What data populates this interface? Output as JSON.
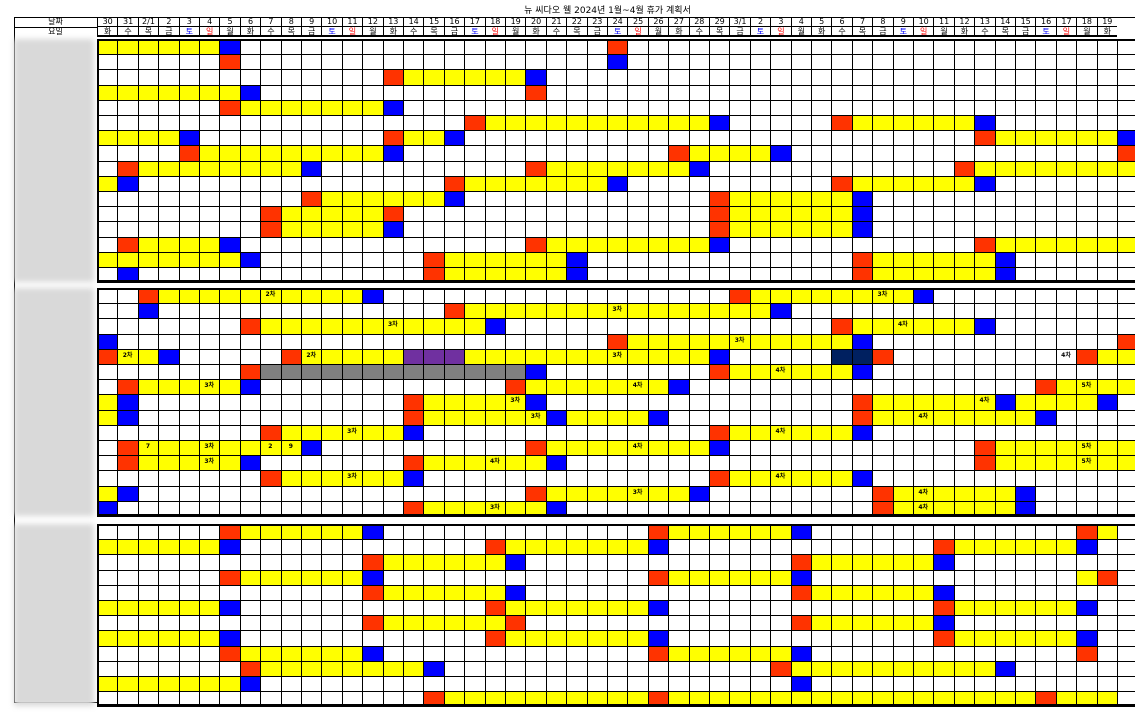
{
  "title": "뉴 씨다오 웰 2024년 1월~4월 휴가 계획서",
  "row_labels": {
    "date": "날짜",
    "weekday": "요일"
  },
  "dates": [
    "30",
    "31",
    "2/1",
    "2",
    "3",
    "4",
    "5",
    "6",
    "7",
    "8",
    "9",
    "10",
    "11",
    "12",
    "13",
    "14",
    "15",
    "16",
    "17",
    "18",
    "19",
    "20",
    "21",
    "22",
    "23",
    "24",
    "25",
    "26",
    "27",
    "28",
    "29",
    "3/1",
    "2",
    "3",
    "4",
    "5",
    "6",
    "7",
    "8",
    "9",
    "10",
    "11",
    "12",
    "13",
    "14",
    "15",
    "16",
    "17",
    "18",
    "19"
  ],
  "weekdays": [
    "화",
    "수",
    "목",
    "금",
    "토",
    "일",
    "월",
    "화",
    "수",
    "목",
    "금",
    "토",
    "일",
    "월",
    "화",
    "수",
    "목",
    "금",
    "토",
    "일",
    "월",
    "화",
    "수",
    "목",
    "금",
    "토",
    "일",
    "월",
    "화",
    "수",
    "목",
    "금",
    "토",
    "일",
    "월",
    "화",
    "수",
    "목",
    "금",
    "토",
    "일",
    "월",
    "화",
    "수",
    "목",
    "금",
    "토",
    "일",
    "월",
    "화"
  ],
  "colors": {
    "yellow": "#ffff00",
    "blue": "#0000ff",
    "red": "#ff3300",
    "purple": "#7030a0",
    "gray": "#808080",
    "navy": "#002060",
    "sat": "#0000ff",
    "sun": "#ff0000"
  },
  "sections": [
    {
      "rows": [
        "YYYYYYBWWWWWWWWWWWWWWWWWWRWWWWWWWWWWWWWWWWWWWWWWWWW",
        "WWWWWWRWWWWWWWWWWWWWWWWWWBWWWWWWWWWWWWWWWWWWWWWWWWW",
        "WWWWWWWWWWWWWWRYYYYYYBWWWWWWWWWWWWWWWWWWWWWWWWWWWWW",
        "YYYYYYYBWWWWWWWWWWWWWRWWWWWWWWWWWWWWWWWWWWWWWWWWWWW",
        "WWWWWWRYYYYYYYBWWWWWWWWWWWWWWWWWWWWWWWWWWWWWWWWWWWW",
        "WWWWWWWWWWWWWWWWWWRYYYYYYYYYYYBWWWWWRYYYYYYBWWWWWWW",
        "YYYYBWWWWWWWWWRYYBWWWWWWWWWWWWWWWWWWWWWWWWWRYYYYYYB",
        "WWWWRYYYYYYYYYBWWWWWWWWWWWWWRYYYYBWWWWWWWWWWWWWWWWR",
        "WRYYYYYYYYBWWWWWWWWWWRYYYYYYYBWWWWWWWWWWWWRYYYYYYYY",
        "YBWWWWWWWWWWWWWWWRYYYYYYYBWWWWWWWWWWRYYYYYYBWWWWWWW",
        "WWWWWWWWWWRYYYYYYBWWWWWWWWWWWWRYYYYYYBWWWWWWWWWWWWW",
        "WWWWWWWWRYYYYYRWWWWWWWWWWWWWWWRYYYYYYBWWWWWWWWWWWWW",
        "WWWWWWWWRYYYYYBWWWWWWWWWWWWWWWRYYYYYYBWWWWWWWWWWWWW",
        "WRYYYYBWWWWWWWWWWWWWWRYYYYYYYYBWWWWWWWWWWWWRYYYYYYY",
        "YYYYYYYBWWWWWWWWRYYYYYYBWWWWWWWWWWWWWRYYYYYYBWWWWWW",
        "WBWWWWWWWWWWWWWWRYYYYYYBWWWWWWWWWWWWWRYYYYYYBWWWWWW"
      ]
    },
    {
      "rows": [
        "WWRYYYYYYYYYYBWWWWWWWWWWWWWWWWWRYYYYYYYYBWWWWWWWWWW",
        "WWBWWWWWWWWWWWWWWRYYYYYYYYYYYYYYYBWWWWWWWWWWWWWWWWW",
        "WWWWWWWRYYYYYYYYYYYBWWWWWWWWWWWWWWWWRYYYYYYBWWWWWWW",
        "BWWWWWWWWWWWWWWWWWWWWWWWWRYYYYYYYYYYYBWWWWWWWWWWWWR",
        "RYYBWWWWWRYYYYYPPPYYYYYYYYYYYYBWWWWWNNRWWWWWWWWWRYYY",
        "WWWWWWWRGGGGGGGGGGGGGBWWWWWWWWRYYYYYYBWWWWWWWWWWWWW",
        "WRYYYYYBWWWWWWWWWWWWRYYYYYYYBWWWWWWWWWWWWWWWWWRYYYY",
        "YBWWWWWWWWWWWWWRYYYYYBWWWWWWWWWWWWWWWRYYYYYYBYYYYBW",
        "YBWWWWWWWWWWWWWRYYYYYYBYYYYBWWWWWWWWWRYYYYYYYYBWWWW",
        "WWWWWWWWRYYYYYYBWWWWWWWWWWWWWWRYYYYYYBWWWWWWWWWWWWW",
        "WRYYYYYYYYBWWWWWWWWWWRYYYYYYYYBWWWWWWWWWWWWRYYYYYYY",
        "WRYYYYYBWWWWWWWRYYYYYYBWWWWWWWWWWWWWWWWWWWWRYYYYYYY",
        "WWWWWWWWRYYYYYYBWWWWWWWWWWWWWWRYYYYYYBWWWWWWWWWWWWW",
        "YBWWWWWWWWWWWWWWWWWWWRYYYYYYYBWWWWWWWWRYYYYYYBWWWWW",
        "BWWWWWWWWWWWWWWRYYYYYYBWWWWWWWWWWWWWWWRYYYYYYBWWWWW"
      ],
      "labels": [
        {
          "r": 0,
          "c": 8,
          "t": "2차"
        },
        {
          "r": 0,
          "c": 38,
          "t": "3차"
        },
        {
          "r": 1,
          "c": 25,
          "t": "3차"
        },
        {
          "r": 2,
          "c": 14,
          "t": "3차"
        },
        {
          "r": 2,
          "c": 39,
          "t": "4차"
        },
        {
          "r": 3,
          "c": 31,
          "t": "3차"
        },
        {
          "r": 4,
          "c": 1,
          "t": "2차"
        },
        {
          "r": 4,
          "c": 10,
          "t": "2차"
        },
        {
          "r": 4,
          "c": 25,
          "t": "3차"
        },
        {
          "r": 4,
          "c": 47,
          "t": "4차"
        },
        {
          "r": 5,
          "c": 33,
          "t": "4차"
        },
        {
          "r": 6,
          "c": 5,
          "t": "3차"
        },
        {
          "r": 6,
          "c": 26,
          "t": "4차"
        },
        {
          "r": 6,
          "c": 48,
          "t": "5차"
        },
        {
          "r": 7,
          "c": 20,
          "t": "3차"
        },
        {
          "r": 7,
          "c": 43,
          "t": "4차"
        },
        {
          "r": 8,
          "c": 21,
          "t": "3차"
        },
        {
          "r": 8,
          "c": 40,
          "t": "4차"
        },
        {
          "r": 9,
          "c": 12,
          "t": "3차"
        },
        {
          "r": 9,
          "c": 33,
          "t": "4차"
        },
        {
          "r": 10,
          "c": 2,
          "t": "7"
        },
        {
          "r": 10,
          "c": 5,
          "t": "3차"
        },
        {
          "r": 10,
          "c": 8,
          "t": "2"
        },
        {
          "r": 10,
          "c": 9,
          "t": "9"
        },
        {
          "r": 10,
          "c": 26,
          "t": "4차"
        },
        {
          "r": 10,
          "c": 48,
          "t": "5차"
        },
        {
          "r": 11,
          "c": 5,
          "t": "3차"
        },
        {
          "r": 11,
          "c": 19,
          "t": "4차"
        },
        {
          "r": 11,
          "c": 48,
          "t": "5차"
        },
        {
          "r": 12,
          "c": 12,
          "t": "3차"
        },
        {
          "r": 12,
          "c": 33,
          "t": "4차"
        },
        {
          "r": 13,
          "c": 26,
          "t": "3차"
        },
        {
          "r": 13,
          "c": 40,
          "t": "4차"
        },
        {
          "r": 14,
          "c": 19,
          "t": "3차"
        },
        {
          "r": 14,
          "c": 40,
          "t": "4차"
        }
      ]
    },
    {
      "rows": [
        "WWWWWWRYYYYYYBWWWWWWWWWWWWWRYYYYYYBWWWWWWWWWWWWWRY",
        "YYYYYYBWWWWWWWWWWWWRYYYYYYYBWWWWWWWWWWWWWRYYYYYYBW",
        "WWWWWWWWWWWWWRYYYYYYBWWWWWWWWWWWWWRYYYYYYBWWWWWWWW",
        "WWWWWWRYYYYYYBWWWWWWWWWWWWWRYYYYYYBWWWWWWWWWWWWWYR",
        "WWWWWWWWWWWWWRYYYYYYBWWWWWWWWWWWWWRYYYYYYBWWWWWWWW",
        "YYYYYYBWWWWWWWWWWWWRYYYYYYYBWWWWWWWWWWWWWRYYYYYYBW",
        "WWWWWWWWWWWWWRYYYYYYRWWWWWWWWWWWWWRYYYYYYBWWWWWWWW",
        "YYYYYYBWWWWWWWWWWWWRYYYYYYYBWWWWWWWWWWWWWRYYYYYYBW",
        "WWWWWWRYYYYYYBWWWWWWWWWWWWWRYYYYYYBWWWWWWWWWWWWWR",
        "WWWWWWWRYYYYYYYYBWWWWWWWWWWWWWWWWRYYYYYYYYYYBWWWWW",
        "YYYYYYYBWWWWWWWWWWWWWWWWWWWWWWWWWWBWWWWWWWWWWWWWWW",
        "WWWWWWWWWWWWWWWWRYYYYYYYYYYRYYYYYYYYYYYYYYYYYYRYYY"
      ]
    }
  ]
}
